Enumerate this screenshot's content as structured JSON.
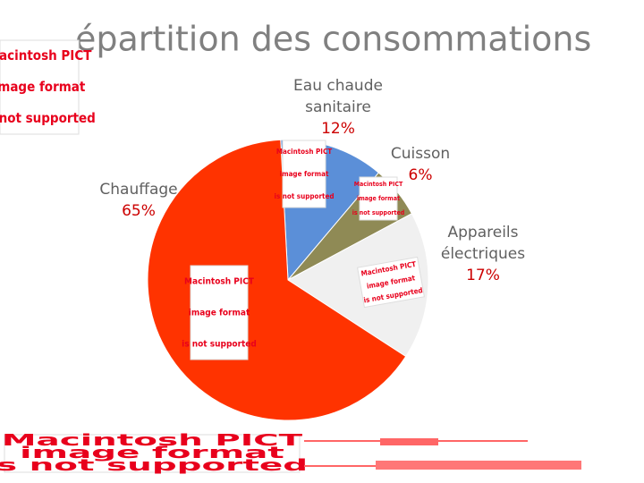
{
  "chart_data": {
    "type": "pie",
    "title": "épartition des consommations",
    "categories": [
      "Eau chaude sanitaire",
      "Cuisson",
      "Appareils électriques",
      "Chauffage"
    ],
    "values": [
      12,
      6,
      17,
      65
    ],
    "value_labels": [
      "12%",
      "6%",
      "17%",
      "65%"
    ],
    "colors": [
      "#5b8fd8",
      "#8f8a55",
      "#f0f0f0",
      "#ff3300"
    ]
  },
  "placeholders": [
    {
      "lines": [
        "Macintosh PICT",
        "image format",
        "is not supported"
      ]
    },
    {
      "lines": [
        "Macintosh PICT",
        "image format",
        "is not supported"
      ]
    },
    {
      "lines": [
        "Macintosh PICT",
        "image format",
        "is not supported"
      ]
    },
    {
      "lines": [
        "Macintosh PICT",
        "image format",
        "is not supported"
      ]
    },
    {
      "lines": [
        "Macintosh PICT",
        "image format",
        "is not supported"
      ]
    },
    {
      "lines": [
        "Macintosh PICT",
        "image format",
        "s not supported"
      ]
    }
  ]
}
